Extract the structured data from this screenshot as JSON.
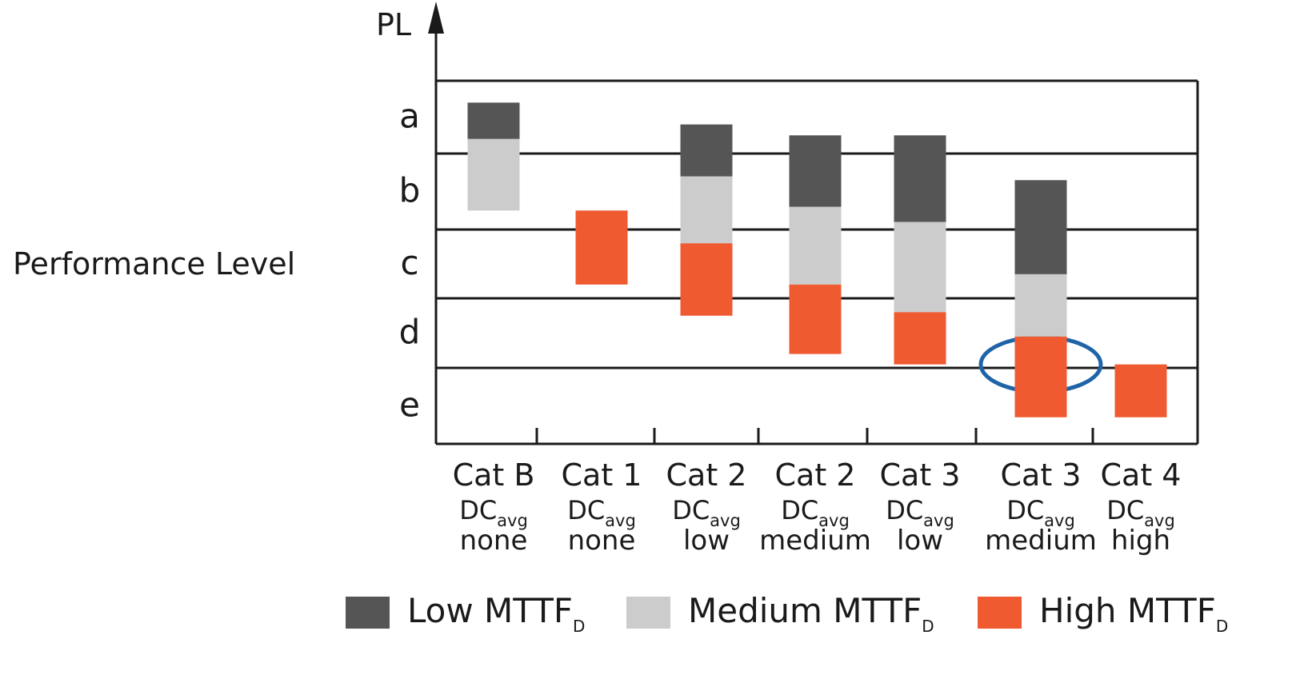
{
  "chart_data": {
    "type": "bar",
    "title": "",
    "y_axis_label": "PL",
    "side_label": "Performance Level",
    "y_levels": [
      "a",
      "b",
      "c",
      "d",
      "e"
    ],
    "categories": [
      {
        "cat": "Cat B",
        "dc_label": "DC",
        "dc_sub": "avg",
        "dc_level": "none"
      },
      {
        "cat": "Cat 1",
        "dc_label": "DC",
        "dc_sub": "avg",
        "dc_level": "none"
      },
      {
        "cat": "Cat 2",
        "dc_label": "DC",
        "dc_sub": "avg",
        "dc_level": "low"
      },
      {
        "cat": "Cat 2",
        "dc_label": "DC",
        "dc_sub": "avg",
        "dc_level": "medium"
      },
      {
        "cat": "Cat 3",
        "dc_label": "DC",
        "dc_sub": "avg",
        "dc_level": "low"
      },
      {
        "cat": "Cat 3",
        "dc_label": "DC",
        "dc_sub": "avg",
        "dc_level": "medium"
      },
      {
        "cat": "Cat 4",
        "dc_label": "DC",
        "dc_sub": "avg",
        "dc_level": "high"
      }
    ],
    "y_scale_note": "PL scale: a=0..1, b=1..2, c=2..3, d=3..4, e=4..5 (downward = higher PL)",
    "series": [
      {
        "name": "Low MTTF",
        "name_sub": "D",
        "color": "#555555",
        "ranges": [
          [
            0.3,
            0.8
          ],
          null,
          [
            0.6,
            1.3
          ],
          [
            0.75,
            1.7
          ],
          [
            0.75,
            1.9
          ],
          [
            1.35,
            2.65
          ],
          null
        ]
      },
      {
        "name": "Medium MTTF",
        "name_sub": "D",
        "color": "#cccccc",
        "ranges": [
          [
            0.8,
            1.75
          ],
          null,
          [
            1.3,
            2.2
          ],
          [
            1.7,
            2.8
          ],
          [
            1.9,
            3.2
          ],
          [
            2.65,
            3.55
          ],
          null
        ]
      },
      {
        "name": "High MTTF",
        "name_sub": "D",
        "color": "#f05a30",
        "ranges": [
          null,
          [
            1.75,
            2.8
          ],
          [
            2.2,
            3.25
          ],
          [
            2.8,
            3.8
          ],
          [
            3.2,
            3.95
          ],
          [
            3.55,
            4.65
          ],
          [
            3.95,
            4.65
          ]
        ]
      }
    ],
    "highlight": {
      "category_index": 5,
      "level_value": 3.95,
      "color": "#1f64a8"
    },
    "legend_position": "bottom"
  }
}
